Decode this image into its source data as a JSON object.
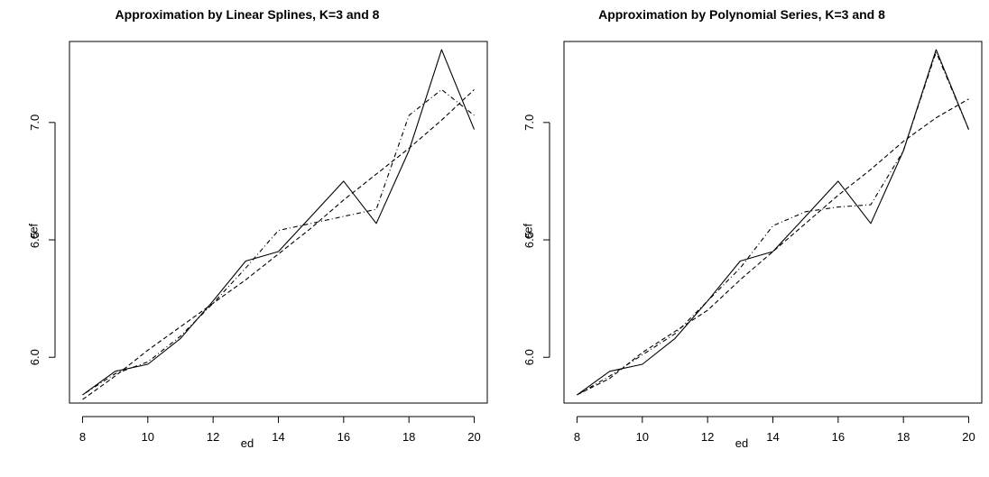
{
  "chart_data": [
    {
      "type": "line",
      "title": "Approximation by Linear Splines, K=3 and 8",
      "xlabel": "ed",
      "ylabel": "cef",
      "xlim": [
        7.6,
        20.4
      ],
      "ylim": [
        5.805,
        7.345
      ],
      "xticks": [
        8,
        10,
        12,
        14,
        16,
        18,
        20
      ],
      "yticks": [
        6.0,
        6.5,
        7.0
      ],
      "ytick_labels": [
        "6.0",
        "6.5",
        "7.0"
      ],
      "grid": false,
      "series": [
        {
          "style": "solid",
          "x": [
            8,
            9,
            10,
            11,
            12,
            13,
            14,
            15,
            16,
            17,
            18,
            19,
            20
          ],
          "y": [
            5.84,
            5.94,
            5.97,
            6.08,
            6.24,
            6.41,
            6.45,
            6.6,
            6.75,
            6.57,
            6.88,
            7.31,
            6.97
          ]
        },
        {
          "style": "dashed",
          "x": [
            8,
            9,
            10,
            11,
            12,
            13,
            14,
            15,
            16,
            17,
            18,
            19,
            20
          ],
          "y": [
            5.82,
            5.92,
            6.03,
            6.13,
            6.23,
            6.33,
            6.44,
            6.55,
            6.67,
            6.78,
            6.89,
            7.01,
            7.14
          ]
        },
        {
          "style": "dotdash",
          "x": [
            8,
            9,
            10,
            11,
            12,
            13,
            14,
            15,
            16,
            17,
            18,
            19,
            20
          ],
          "y": [
            5.84,
            5.93,
            5.98,
            6.09,
            6.23,
            6.38,
            6.54,
            6.57,
            6.6,
            6.63,
            7.03,
            7.14,
            7.03
          ]
        }
      ]
    },
    {
      "type": "line",
      "title": "Approximation by Polynomial Series, K=3 and 8",
      "xlabel": "ed",
      "ylabel": "cef",
      "xlim": [
        7.6,
        20.4
      ],
      "ylim": [
        5.805,
        7.345
      ],
      "xticks": [
        8,
        10,
        12,
        14,
        16,
        18,
        20
      ],
      "yticks": [
        6.0,
        6.5,
        7.0
      ],
      "ytick_labels": [
        "6.0",
        "6.5",
        "7.0"
      ],
      "grid": false,
      "series": [
        {
          "style": "solid",
          "x": [
            8,
            9,
            10,
            11,
            12,
            13,
            14,
            15,
            16,
            17,
            18,
            19,
            20
          ],
          "y": [
            5.84,
            5.94,
            5.97,
            6.08,
            6.24,
            6.41,
            6.45,
            6.6,
            6.75,
            6.57,
            6.88,
            7.31,
            6.97
          ]
        },
        {
          "style": "dashed",
          "x": [
            8,
            9,
            10,
            11,
            12,
            13,
            14,
            15,
            16,
            17,
            18,
            19,
            20
          ],
          "y": [
            5.84,
            5.91,
            6.02,
            6.11,
            6.2,
            6.33,
            6.45,
            6.57,
            6.69,
            6.8,
            6.92,
            7.02,
            7.1
          ]
        },
        {
          "style": "dotdash",
          "x": [
            8,
            9,
            10,
            11,
            12,
            13,
            14,
            15,
            16,
            17,
            18,
            19,
            20
          ],
          "y": [
            5.84,
            5.92,
            6.01,
            6.1,
            6.24,
            6.38,
            6.56,
            6.62,
            6.64,
            6.65,
            6.88,
            7.3,
            6.97
          ]
        }
      ]
    }
  ]
}
